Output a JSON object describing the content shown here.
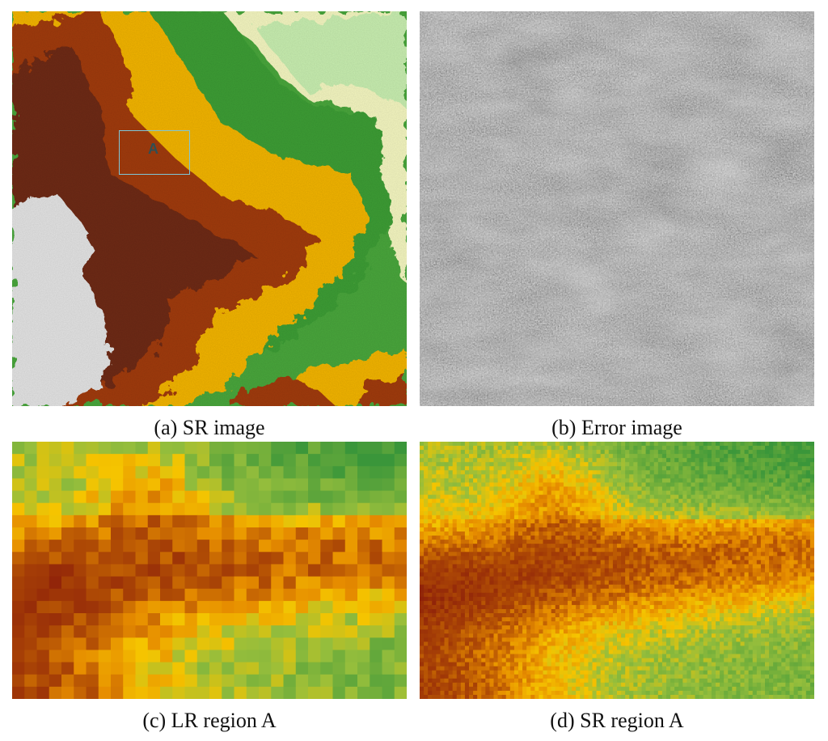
{
  "captions": {
    "a": "(a) SR image",
    "b": "(b) Error image",
    "c": "(c) LR region A",
    "d": "(d) SR region A"
  },
  "region_marker": {
    "label": "A"
  },
  "colors": {
    "snow": "#e8e8e8",
    "dark_brown": "#6b2a10",
    "rust": "#9a3a08",
    "orange": "#f0a400",
    "yellow": "#f5c400",
    "green": "#3aa23a",
    "light_green": "#bfe8a8",
    "pale_yellow": "#f4f6c0",
    "error_gray": "#8a8a8a"
  }
}
